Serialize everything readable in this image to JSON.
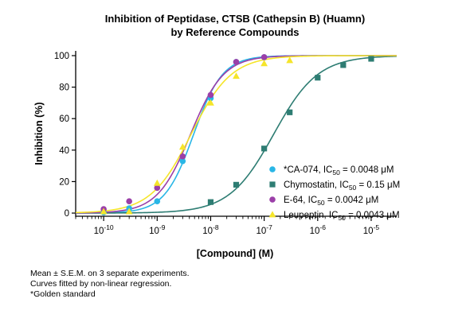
{
  "chart_data": {
    "type": "scatter",
    "title": [
      "Inhibition of Peptidase, CTSB (Cathepsin B) (Huamn)",
      "by Reference Compounds"
    ],
    "xlabel": "[Compound] (M)",
    "ylabel": "Inhibition (%)",
    "x_scale": "log",
    "xlim": [
      3e-11,
      3e-05
    ],
    "ylim": [
      -2,
      101
    ],
    "x_ticks": [
      1e-10,
      1e-09,
      1e-08,
      1e-07,
      1e-06,
      1e-05
    ],
    "x_tick_labels": [
      {
        "base": "10",
        "exp": "-10"
      },
      {
        "base": "10",
        "exp": "-9"
      },
      {
        "base": "10",
        "exp": "-8"
      },
      {
        "base": "10",
        "exp": "-7"
      },
      {
        "base": "10",
        "exp": "-6"
      },
      {
        "base": "10",
        "exp": "-5"
      }
    ],
    "y_ticks": [
      0,
      20,
      40,
      60,
      80,
      100
    ],
    "y_tick_labels": [
      "0",
      "20",
      "40",
      "60",
      "80",
      "100"
    ],
    "grid": false,
    "legend_position": "lower-right",
    "series": [
      {
        "name": "*CA-074",
        "legend": {
          "pre": "*CA-074, IC",
          "sub": "50",
          "post": " = 0.0048  μM"
        },
        "color": "#29b6e6",
        "marker": "circle",
        "ic50": 4.8e-09,
        "hill": 1.6,
        "bottom": 0,
        "top": 100,
        "x": [
          1e-10,
          3e-10,
          1e-09,
          3e-09,
          1e-08,
          3e-08,
          1e-07
        ],
        "y": [
          0.5,
          3,
          7.5,
          33,
          73,
          96,
          99
        ]
      },
      {
        "name": "Chymostatin",
        "legend": {
          "pre": "Chymostatin, IC",
          "sub": "50",
          "post": " = 0.15 μM"
        },
        "color": "#2e7d73",
        "marker": "square",
        "ic50": 1.5e-07,
        "hill": 1.05,
        "bottom": 0,
        "top": 100,
        "x": [
          1e-08,
          3e-08,
          1e-07,
          3e-07,
          1e-06,
          3e-06,
          1e-05
        ],
        "y": [
          7,
          18,
          41,
          64,
          86,
          94,
          98
        ]
      },
      {
        "name": "E-64",
        "legend": {
          "pre": "E-64, IC",
          "sub": "50",
          "post": " = 0.0042  μM"
        },
        "color": "#9b3fa8",
        "marker": "circle",
        "ic50": 4.2e-09,
        "hill": 1.4,
        "bottom": 0,
        "top": 100,
        "x": [
          1e-10,
          3e-10,
          1e-09,
          3e-09,
          1e-08,
          3e-08,
          1e-07
        ],
        "y": [
          2.5,
          7.5,
          16,
          36,
          75,
          96,
          99
        ]
      },
      {
        "name": "Leupeptin",
        "legend": {
          "pre": "Leupeptin, IC",
          "sub": "50",
          "post": " = 0.0043  μM"
        },
        "color": "#f5e52a",
        "marker": "triangle",
        "ic50": 4.3e-09,
        "hill": 1.15,
        "bottom": 0,
        "top": 100,
        "x": [
          1e-10,
          3e-10,
          1e-09,
          3e-09,
          1e-08,
          3e-08,
          1e-07,
          3e-07
        ],
        "y": [
          1,
          1,
          19,
          42,
          70,
          87,
          95,
          97
        ]
      }
    ]
  },
  "notes": [
    "Mean ± S.E.M. on 3 separate experiments.",
    "Curves fitted by non-linear regression.",
    "*Golden standard"
  ]
}
